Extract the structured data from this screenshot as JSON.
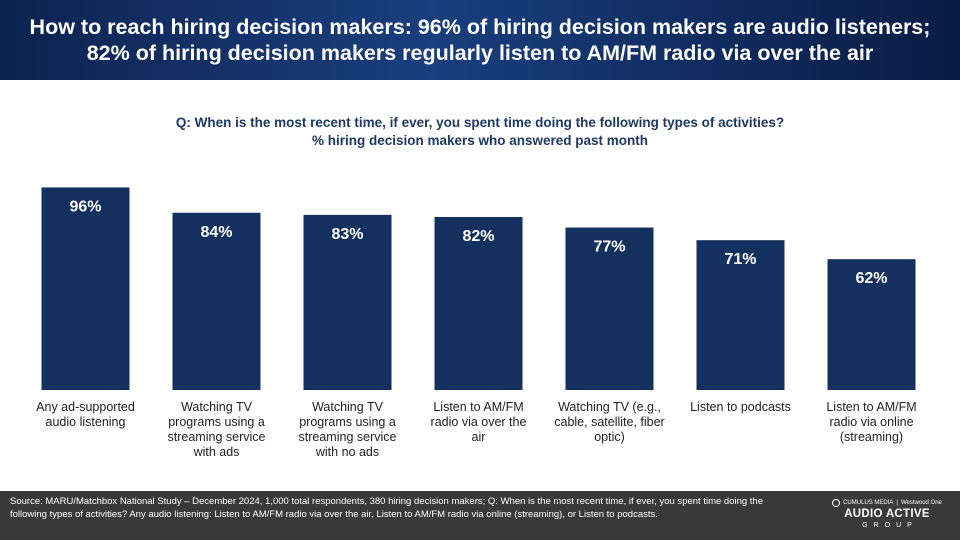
{
  "header": {
    "title": "How to reach hiring decision makers: 96% of hiring decision makers are audio listeners; 82% of hiring decision makers regularly listen to AM/FM radio via over the air"
  },
  "question": {
    "line1": "Q: When is the most recent time, if ever, you spent time doing the following types of activities?",
    "line2": "% hiring decision makers who answered past month"
  },
  "chart_data": {
    "type": "bar",
    "categories": [
      [
        "Any ad-supported",
        "audio listening"
      ],
      [
        "Watching TV",
        "programs using a",
        "streaming service",
        "with ads"
      ],
      [
        "Watching TV",
        "programs using a",
        "streaming service",
        "with no ads"
      ],
      [
        "Listen to AM/FM",
        "radio via over the",
        "air"
      ],
      [
        "Watching TV (e.g.,",
        "cable, satellite, fiber",
        "optic)"
      ],
      [
        "Listen to podcasts"
      ],
      [
        "Listen to AM/FM",
        "radio via online",
        "(streaming)"
      ]
    ],
    "values": [
      96,
      84,
      83,
      82,
      77,
      71,
      62
    ],
    "value_labels": [
      "96%",
      "84%",
      "83%",
      "82%",
      "77%",
      "71%",
      "62%"
    ],
    "ylim": [
      0,
      100
    ],
    "grid": false,
    "bar_color": "#14305f"
  },
  "footer": {
    "source": "Source: MARU/Matchbox National Study – December 2024, 1,000 total respondents, 380 hiring decision makers; Q: When is the most recent time, if ever, you spent time doing the following types of activities? Any audio listening: Listen to AM/FM radio via over the air, Listen to AM/FM radio via online (streaming), or Listen to podcasts.",
    "brand_top_left": "CUMULUS MEDIA",
    "brand_top_right": "Westwood One",
    "brand_main": "AUDIO ACTIVE",
    "brand_sub": "GROUP"
  },
  "colors": {
    "header_bg": "#14305f",
    "bar": "#14305f",
    "question_text": "#1f3864",
    "footer_bg": "#3a3a3a"
  }
}
